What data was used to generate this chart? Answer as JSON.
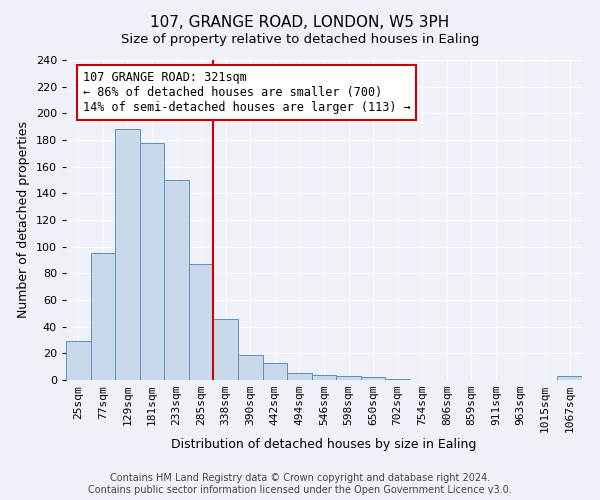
{
  "title": "107, GRANGE ROAD, LONDON, W5 3PH",
  "subtitle": "Size of property relative to detached houses in Ealing",
  "xlabel": "Distribution of detached houses by size in Ealing",
  "ylabel": "Number of detached properties",
  "bin_labels": [
    "25sqm",
    "77sqm",
    "129sqm",
    "181sqm",
    "233sqm",
    "285sqm",
    "338sqm",
    "390sqm",
    "442sqm",
    "494sqm",
    "546sqm",
    "598sqm",
    "650sqm",
    "702sqm",
    "754sqm",
    "806sqm",
    "859sqm",
    "911sqm",
    "963sqm",
    "1015sqm",
    "1067sqm"
  ],
  "bar_heights": [
    29,
    95,
    188,
    178,
    150,
    87,
    46,
    19,
    13,
    5,
    4,
    3,
    2,
    1,
    0,
    0,
    0,
    0,
    0,
    0,
    3
  ],
  "bar_color": "#c9d9eb",
  "bar_edge_color": "#5b8fc2",
  "vline_color": "#cc0000",
  "annotation_box_text": "107 GRANGE ROAD: 321sqm\n← 86% of detached houses are smaller (700)\n14% of semi-detached houses are larger (113) →",
  "box_edge_color": "#cc0000",
  "ylim": [
    0,
    240
  ],
  "footer1": "Contains HM Land Registry data © Crown copyright and database right 2024.",
  "footer2": "Contains public sector information licensed under the Open Government Licence v3.0.",
  "background_color": "#eef2f8",
  "grid_color": "#ffffff",
  "title_fontsize": 11,
  "axis_label_fontsize": 9,
  "tick_fontsize": 8,
  "footer_fontsize": 7
}
